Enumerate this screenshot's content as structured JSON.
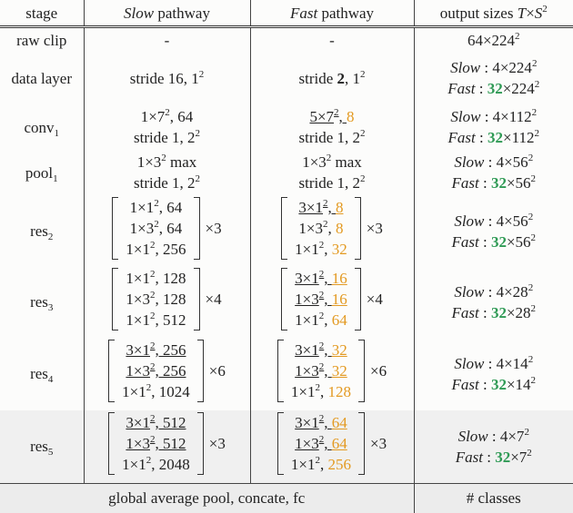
{
  "header": {
    "stage": [
      {
        "text": "stage"
      }
    ],
    "slow": [
      {
        "text": "Slow",
        "style": "italic"
      },
      {
        "text": " pathway"
      }
    ],
    "fast": [
      {
        "text": "Fast",
        "style": "italic"
      },
      {
        "text": " pathway"
      }
    ],
    "output": [
      {
        "text": "output sizes "
      },
      {
        "text": "T",
        "style": "italic"
      },
      {
        "text": "×"
      },
      {
        "text": "S",
        "style": "italic"
      },
      {
        "text": "2",
        "style": "sup"
      }
    ]
  },
  "rows": [
    {
      "stage": [
        [
          {
            "text": "raw clip"
          }
        ]
      ],
      "slow": {
        "lines": [
          [
            {
              "text": "-"
            }
          ]
        ]
      },
      "fast": {
        "lines": [
          [
            {
              "text": "-"
            }
          ]
        ]
      },
      "output": [
        [
          {
            "text": "64×224"
          },
          {
            "text": "2",
            "style": "sup"
          }
        ]
      ]
    },
    {
      "stage": [
        [
          {
            "text": "data layer"
          }
        ]
      ],
      "slow": {
        "lines": [
          [
            {
              "text": "stride 16, 1"
            },
            {
              "text": "2",
              "style": "sup"
            }
          ]
        ]
      },
      "fast": {
        "lines": [
          [
            {
              "text": "stride "
            },
            {
              "text": "2",
              "style": "bold"
            },
            {
              "text": ", 1"
            },
            {
              "text": "2",
              "style": "sup"
            }
          ]
        ]
      },
      "output": [
        [
          {
            "text": "Slow",
            "style": "italic"
          },
          {
            "text": " : 4×224"
          },
          {
            "text": "2",
            "style": "sup"
          }
        ],
        [
          {
            "text": "Fast",
            "style": "italic"
          },
          {
            "text": " : "
          },
          {
            "text": "32",
            "style": "green"
          },
          {
            "text": "×224"
          },
          {
            "text": "2",
            "style": "sup"
          }
        ]
      ]
    },
    {
      "stage": [
        [
          {
            "text": "conv"
          },
          {
            "text": "1",
            "style": "sub"
          }
        ]
      ],
      "slow": {
        "lines": [
          [
            {
              "text": "1×7"
            },
            {
              "text": "2",
              "style": "sup"
            },
            {
              "text": ", 64"
            }
          ],
          [
            {
              "text": "stride 1, 2"
            },
            {
              "text": "2",
              "style": "sup"
            }
          ]
        ]
      },
      "fast": {
        "lines": [
          [
            {
              "text": "5×7",
              "style": "underline"
            },
            {
              "text": "2",
              "style": "sup underline"
            },
            {
              "text": ", ",
              "style": "underline"
            },
            {
              "text": "8",
              "style": "orange"
            }
          ],
          [
            {
              "text": "stride 1, 2"
            },
            {
              "text": "2",
              "style": "sup"
            }
          ]
        ]
      },
      "output": [
        [
          {
            "text": "Slow",
            "style": "italic"
          },
          {
            "text": " : 4×112"
          },
          {
            "text": "2",
            "style": "sup"
          }
        ],
        [
          {
            "text": "Fast",
            "style": "italic"
          },
          {
            "text": " : "
          },
          {
            "text": "32",
            "style": "green"
          },
          {
            "text": "×112"
          },
          {
            "text": "2",
            "style": "sup"
          }
        ]
      ]
    },
    {
      "stage": [
        [
          {
            "text": "pool"
          },
          {
            "text": "1",
            "style": "sub"
          }
        ]
      ],
      "slow": {
        "lines": [
          [
            {
              "text": "1×3"
            },
            {
              "text": "2",
              "style": "sup"
            },
            {
              "text": " max"
            }
          ],
          [
            {
              "text": "stride 1, 2"
            },
            {
              "text": "2",
              "style": "sup"
            }
          ]
        ]
      },
      "fast": {
        "lines": [
          [
            {
              "text": "1×3"
            },
            {
              "text": "2",
              "style": "sup"
            },
            {
              "text": " max"
            }
          ],
          [
            {
              "text": "stride 1, 2"
            },
            {
              "text": "2",
              "style": "sup"
            }
          ]
        ]
      },
      "output": [
        [
          {
            "text": "Slow",
            "style": "italic"
          },
          {
            "text": " : 4×56"
          },
          {
            "text": "2",
            "style": "sup"
          }
        ],
        [
          {
            "text": "Fast",
            "style": "italic"
          },
          {
            "text": " : "
          },
          {
            "text": "32",
            "style": "green"
          },
          {
            "text": "×56"
          },
          {
            "text": "2",
            "style": "sup"
          }
        ]
      ]
    },
    {
      "stage": [
        [
          {
            "text": "res"
          },
          {
            "text": "2",
            "style": "sub"
          }
        ]
      ],
      "slow": {
        "lines": [
          [
            {
              "text": "1×1"
            },
            {
              "text": "2",
              "style": "sup"
            },
            {
              "text": ", 64"
            }
          ],
          [
            {
              "text": "1×3"
            },
            {
              "text": "2",
              "style": "sup"
            },
            {
              "text": ", 64"
            }
          ],
          [
            {
              "text": "1×1"
            },
            {
              "text": "2",
              "style": "sup"
            },
            {
              "text": ", 256"
            }
          ]
        ],
        "times": "×3"
      },
      "fast": {
        "lines": [
          [
            {
              "text": "3×1",
              "style": "underline"
            },
            {
              "text": "2",
              "style": "sup underline"
            },
            {
              "text": ", ",
              "style": "underline"
            },
            {
              "text": "8",
              "style": "orange underline"
            }
          ],
          [
            {
              "text": "1×3"
            },
            {
              "text": "2",
              "style": "sup"
            },
            {
              "text": ", "
            },
            {
              "text": "8",
              "style": "orange"
            }
          ],
          [
            {
              "text": "1×1"
            },
            {
              "text": "2",
              "style": "sup"
            },
            {
              "text": ", "
            },
            {
              "text": "32",
              "style": "orange"
            }
          ]
        ],
        "times": "×3"
      },
      "output": [
        [
          {
            "text": "Slow",
            "style": "italic"
          },
          {
            "text": " : 4×56"
          },
          {
            "text": "2",
            "style": "sup"
          }
        ],
        [
          {
            "text": "Fast",
            "style": "italic"
          },
          {
            "text": " : "
          },
          {
            "text": "32",
            "style": "green"
          },
          {
            "text": "×56"
          },
          {
            "text": "2",
            "style": "sup"
          }
        ]
      ]
    },
    {
      "stage": [
        [
          {
            "text": "res"
          },
          {
            "text": "3",
            "style": "sub"
          }
        ]
      ],
      "slow": {
        "lines": [
          [
            {
              "text": "1×1"
            },
            {
              "text": "2",
              "style": "sup"
            },
            {
              "text": ", 128"
            }
          ],
          [
            {
              "text": "1×3"
            },
            {
              "text": "2",
              "style": "sup"
            },
            {
              "text": ", 128"
            }
          ],
          [
            {
              "text": "1×1"
            },
            {
              "text": "2",
              "style": "sup"
            },
            {
              "text": ", 512"
            }
          ]
        ],
        "times": "×4"
      },
      "fast": {
        "lines": [
          [
            {
              "text": "3×1",
              "style": "underline"
            },
            {
              "text": "2",
              "style": "sup underline"
            },
            {
              "text": ", ",
              "style": "underline"
            },
            {
              "text": "16",
              "style": "orange underline"
            }
          ],
          [
            {
              "text": "1×3",
              "style": "underline"
            },
            {
              "text": "2",
              "style": "sup underline"
            },
            {
              "text": ", ",
              "style": "underline"
            },
            {
              "text": "16",
              "style": "orange underline"
            }
          ],
          [
            {
              "text": "1×1"
            },
            {
              "text": "2",
              "style": "sup"
            },
            {
              "text": ", "
            },
            {
              "text": "64",
              "style": "orange"
            }
          ]
        ],
        "times": "×4"
      },
      "output": [
        [
          {
            "text": "Slow",
            "style": "italic"
          },
          {
            "text": " : 4×28"
          },
          {
            "text": "2",
            "style": "sup"
          }
        ],
        [
          {
            "text": "Fast",
            "style": "italic"
          },
          {
            "text": " : "
          },
          {
            "text": "32",
            "style": "green"
          },
          {
            "text": "×28"
          },
          {
            "text": "2",
            "style": "sup"
          }
        ]
      ]
    },
    {
      "stage": [
        [
          {
            "text": "res"
          },
          {
            "text": "4",
            "style": "sub"
          }
        ]
      ],
      "slow": {
        "lines": [
          [
            {
              "text": "3×1",
              "style": "underline"
            },
            {
              "text": "2",
              "style": "sup underline"
            },
            {
              "text": ", 256",
              "style": "underline"
            }
          ],
          [
            {
              "text": "1×3",
              "style": "underline"
            },
            {
              "text": "2",
              "style": "sup underline"
            },
            {
              "text": ", 256",
              "style": "underline"
            }
          ],
          [
            {
              "text": "1×1"
            },
            {
              "text": "2",
              "style": "sup"
            },
            {
              "text": ", 1024"
            }
          ]
        ],
        "times": "×6"
      },
      "fast": {
        "lines": [
          [
            {
              "text": "3×1",
              "style": "underline"
            },
            {
              "text": "2",
              "style": "sup underline"
            },
            {
              "text": ", ",
              "style": "underline"
            },
            {
              "text": "32",
              "style": "orange underline"
            }
          ],
          [
            {
              "text": "1×3",
              "style": "underline"
            },
            {
              "text": "2",
              "style": "sup underline"
            },
            {
              "text": ", ",
              "style": "underline"
            },
            {
              "text": "32",
              "style": "orange underline"
            }
          ],
          [
            {
              "text": "1×1"
            },
            {
              "text": "2",
              "style": "sup"
            },
            {
              "text": ", "
            },
            {
              "text": "128",
              "style": "orange"
            }
          ]
        ],
        "times": "×6"
      },
      "output": [
        [
          {
            "text": "Slow",
            "style": "italic"
          },
          {
            "text": " : 4×14"
          },
          {
            "text": "2",
            "style": "sup"
          }
        ],
        [
          {
            "text": "Fast",
            "style": "italic"
          },
          {
            "text": " : "
          },
          {
            "text": "32",
            "style": "green"
          },
          {
            "text": "×14"
          },
          {
            "text": "2",
            "style": "sup"
          }
        ]
      ]
    },
    {
      "stage": [
        [
          {
            "text": "res"
          },
          {
            "text": "5",
            "style": "sub"
          }
        ]
      ],
      "slow": {
        "lines": [
          [
            {
              "text": "3×1",
              "style": "underline"
            },
            {
              "text": "2",
              "style": "sup underline"
            },
            {
              "text": ", 512",
              "style": "underline"
            }
          ],
          [
            {
              "text": "1×3",
              "style": "underline"
            },
            {
              "text": "2",
              "style": "sup underline"
            },
            {
              "text": ", 512",
              "style": "underline"
            }
          ],
          [
            {
              "text": "1×1"
            },
            {
              "text": "2",
              "style": "sup"
            },
            {
              "text": ", 2048"
            }
          ]
        ],
        "times": "×3"
      },
      "fast": {
        "lines": [
          [
            {
              "text": "3×1",
              "style": "underline"
            },
            {
              "text": "2",
              "style": "sup underline"
            },
            {
              "text": ", ",
              "style": "underline"
            },
            {
              "text": "64",
              "style": "orange underline"
            }
          ],
          [
            {
              "text": "1×3",
              "style": "underline"
            },
            {
              "text": "2",
              "style": "sup underline"
            },
            {
              "text": ", ",
              "style": "underline"
            },
            {
              "text": "64",
              "style": "orange underline"
            }
          ],
          [
            {
              "text": "1×1"
            },
            {
              "text": "2",
              "style": "sup"
            },
            {
              "text": ", "
            },
            {
              "text": "256",
              "style": "orange"
            }
          ]
        ],
        "times": "×3"
      },
      "output": [
        [
          {
            "text": "Slow",
            "style": "italic"
          },
          {
            "text": " : 4×7"
          },
          {
            "text": "2",
            "style": "sup"
          }
        ],
        [
          {
            "text": "Fast",
            "style": "italic"
          },
          {
            "text": " : "
          },
          {
            "text": "32",
            "style": "green"
          },
          {
            "text": "×7"
          },
          {
            "text": "2",
            "style": "sup"
          }
        ]
      ]
    }
  ],
  "footer": {
    "left": "global average pool, concate, fc",
    "right": "# classes"
  }
}
